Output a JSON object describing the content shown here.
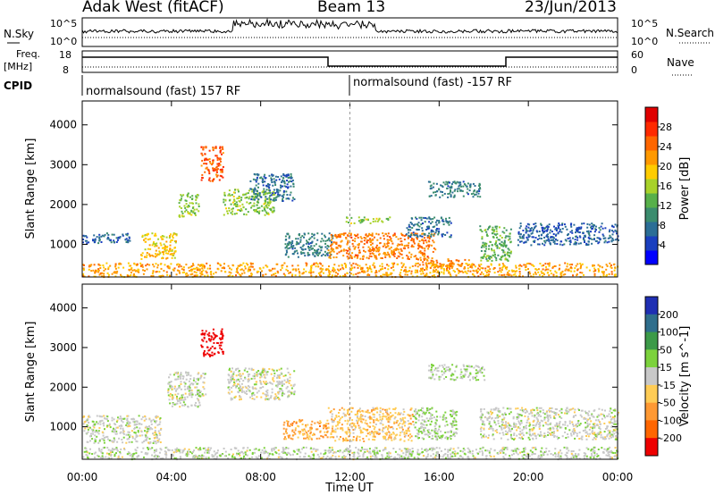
{
  "header": {
    "station": "Adak West (fitACF)",
    "beam": "Beam 13",
    "date": "23/Jun/2013"
  },
  "noise_panel": {
    "left_label": "N.Sky",
    "left_tick_top": "10^5",
    "left_tick_bottom": "10^0",
    "right_tick_top": "10^5",
    "right_tick_bottom": "10^0",
    "right_label": "N.Search"
  },
  "freq_panel": {
    "left_label_line1": "Freq.",
    "left_label_line2": "[MHz]",
    "left_tick_top": "18",
    "left_tick_bottom": "8",
    "right_tick_top": "60",
    "right_tick_bottom": "0",
    "right_label": "Nave"
  },
  "cpid_panel": {
    "label": "CPID",
    "segments": [
      {
        "text": "normalsound (fast) 157 RF",
        "start": "00:00",
        "end": "12:00"
      },
      {
        "text": "normalsound (fast) -157 RF",
        "start": "12:00",
        "end": "24:00"
      }
    ]
  },
  "chart_data": [
    {
      "type": "heatmap",
      "title": "",
      "xlabel": "",
      "ylabel": "Slant Range [km]",
      "x_ticks": [
        "00:00",
        "04:00",
        "08:00",
        "12:00",
        "16:00",
        "20:00",
        "00:00"
      ],
      "xlim_hours": [
        0,
        24
      ],
      "y_ticks": [
        "1000",
        "2000",
        "3000",
        "4000"
      ],
      "ylim_km": [
        180,
        4600
      ],
      "colorbar": {
        "label": "Power [dB]",
        "ticks": [
          "4",
          "8",
          "12",
          "16",
          "20",
          "24",
          "28"
        ],
        "range": [
          0,
          30
        ],
        "colors": [
          "#0000ff",
          "#1a3fbf",
          "#2b6e96",
          "#3b8c6e",
          "#57b04a",
          "#a8d22a",
          "#ffcc00",
          "#ff9900",
          "#ff6600",
          "#ff2a00",
          "#e00000"
        ]
      },
      "regions": [
        {
          "start_h": 0.0,
          "end_h": 2.2,
          "range_km": [
            1050,
            1300
          ],
          "value": 6
        },
        {
          "start_h": 2.6,
          "end_h": 4.2,
          "range_km": [
            650,
            1300
          ],
          "value": 18
        },
        {
          "start_h": 4.3,
          "end_h": 5.2,
          "range_km": [
            1700,
            2300
          ],
          "value": 14
        },
        {
          "start_h": 5.3,
          "end_h": 6.3,
          "range_km": [
            2600,
            3500
          ],
          "value": 24
        },
        {
          "start_h": 6.3,
          "end_h": 8.6,
          "range_km": [
            1750,
            2400
          ],
          "value": 14
        },
        {
          "start_h": 7.5,
          "end_h": 9.5,
          "range_km": [
            2100,
            2800
          ],
          "value": 7
        },
        {
          "start_h": 9.0,
          "end_h": 11.2,
          "range_km": [
            700,
            1300
          ],
          "value": 8
        },
        {
          "start_h": 11.0,
          "end_h": 15.8,
          "range_km": [
            650,
            1300
          ],
          "value": 22
        },
        {
          "start_h": 11.8,
          "end_h": 13.8,
          "range_km": [
            1550,
            1700
          ],
          "value": 14
        },
        {
          "start_h": 14.5,
          "end_h": 16.5,
          "range_km": [
            1200,
            1700
          ],
          "value": 7
        },
        {
          "start_h": 15.5,
          "end_h": 17.8,
          "range_km": [
            2200,
            2600
          ],
          "value": 8
        },
        {
          "start_h": 15.0,
          "end_h": 17.5,
          "range_km": [
            400,
            650
          ],
          "value": 22
        },
        {
          "start_h": 17.8,
          "end_h": 19.2,
          "range_km": [
            600,
            1500
          ],
          "value": 12
        },
        {
          "start_h": 19.5,
          "end_h": 24.0,
          "range_km": [
            1000,
            1550
          ],
          "value": 6
        },
        {
          "start_h": 0.0,
          "end_h": 24.0,
          "range_km": [
            200,
            550
          ],
          "value": 20
        }
      ]
    },
    {
      "type": "heatmap",
      "title": "",
      "xlabel": "Time UT",
      "ylabel": "Slant Range [km]",
      "x_ticks": [
        "00:00",
        "04:00",
        "08:00",
        "12:00",
        "16:00",
        "20:00",
        "00:00"
      ],
      "xlim_hours": [
        0,
        24
      ],
      "y_ticks": [
        "1000",
        "2000",
        "3000",
        "4000"
      ],
      "ylim_km": [
        180,
        4600
      ],
      "colorbar": {
        "label": "Velocity [m s^-1]",
        "ticks": [
          "200",
          "100",
          "50",
          "15",
          "-15",
          "-50",
          "-100",
          "-200"
        ],
        "range": [
          -250,
          250
        ],
        "colors": [
          "#1f2fb3",
          "#2f6e8c",
          "#3c9a48",
          "#7cd23c",
          "#c8c8c8",
          "#ffcc55",
          "#ff9933",
          "#ff6600",
          "#ee0000"
        ]
      },
      "regions": [
        {
          "start_h": 0.0,
          "end_h": 3.5,
          "range_km": [
            600,
            1300
          ],
          "value": 0
        },
        {
          "start_h": 3.8,
          "end_h": 5.5,
          "range_km": [
            1500,
            2400
          ],
          "value": 0
        },
        {
          "start_h": 5.3,
          "end_h": 6.3,
          "range_km": [
            2800,
            3500
          ],
          "value": -250
        },
        {
          "start_h": 6.5,
          "end_h": 9.5,
          "range_km": [
            1700,
            2500
          ],
          "value": 0
        },
        {
          "start_h": 9.0,
          "end_h": 11.0,
          "range_km": [
            700,
            1200
          ],
          "value": -100
        },
        {
          "start_h": 11.0,
          "end_h": 14.8,
          "range_km": [
            650,
            1500
          ],
          "value": -60
        },
        {
          "start_h": 14.8,
          "end_h": 16.8,
          "range_km": [
            700,
            1500
          ],
          "value": 30
        },
        {
          "start_h": 15.5,
          "end_h": 18.0,
          "range_km": [
            2200,
            2600
          ],
          "value": 20
        },
        {
          "start_h": 17.8,
          "end_h": 24.0,
          "range_km": [
            700,
            1500
          ],
          "value": 0
        },
        {
          "start_h": 0.0,
          "end_h": 24.0,
          "range_km": [
            200,
            500
          ],
          "value": 10
        }
      ]
    }
  ]
}
